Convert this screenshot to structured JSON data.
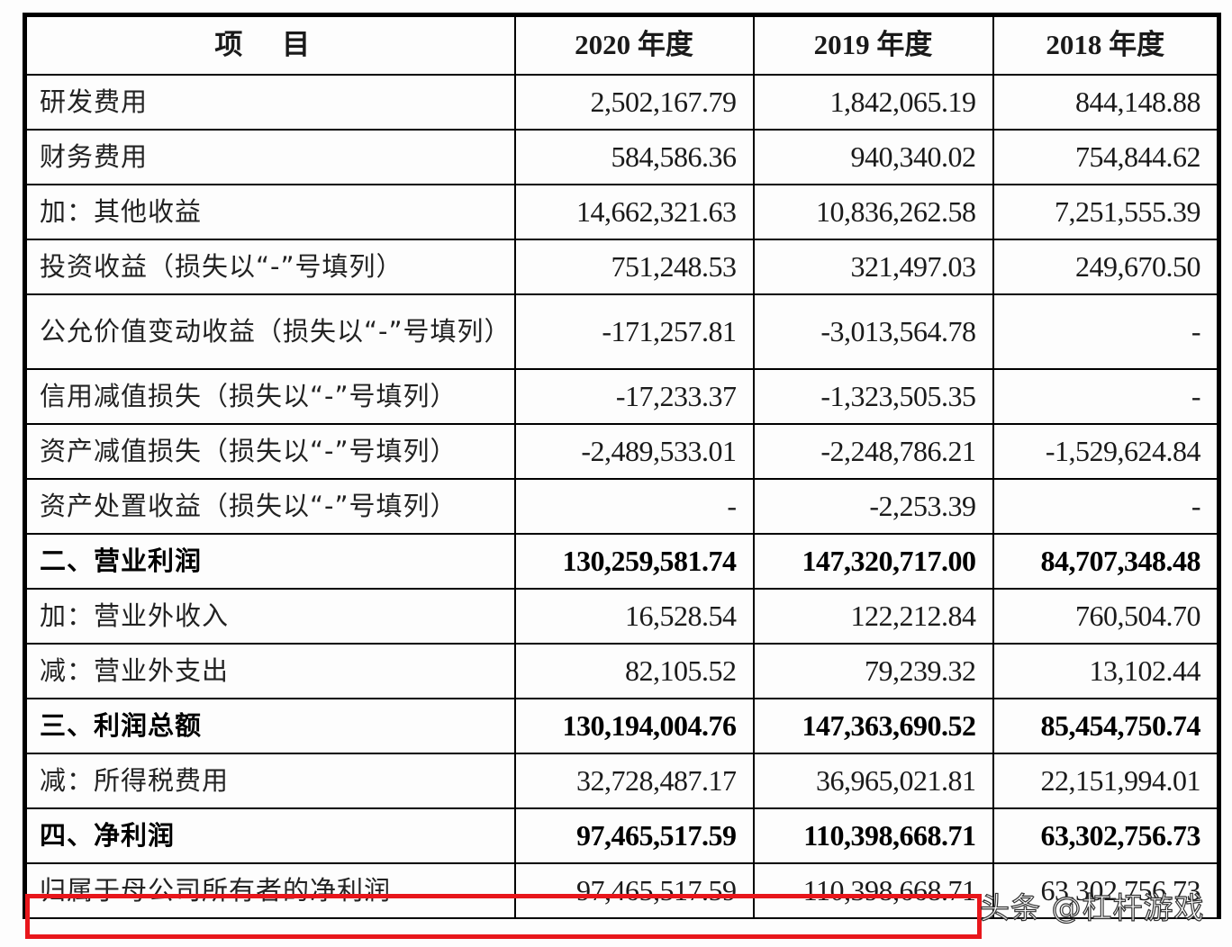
{
  "table": {
    "headers": [
      "项 目",
      "2020 年度",
      "2019 年度",
      "2018 年度"
    ],
    "rows": [
      {
        "label": "研发费用",
        "v2020": "2,502,167.79",
        "v2019": "1,842,065.19",
        "v2018": "844,148.88",
        "bold": false
      },
      {
        "label": "财务费用",
        "v2020": "584,586.36",
        "v2019": "940,340.02",
        "v2018": "754,844.62",
        "bold": false
      },
      {
        "label": "加：其他收益",
        "v2020": "14,662,321.63",
        "v2019": "10,836,262.58",
        "v2018": "7,251,555.39",
        "bold": false
      },
      {
        "label": "投资收益（损失以“-”号填列）",
        "v2020": "751,248.53",
        "v2019": "321,497.03",
        "v2018": "249,670.50",
        "bold": false
      },
      {
        "label": "公允价值变动收益（损失以“-”号填列）",
        "v2020": "-171,257.81",
        "v2019": "-3,013,564.78",
        "v2018": "-",
        "bold": false
      },
      {
        "label": "信用减值损失（损失以“-”号填列）",
        "v2020": "-17,233.37",
        "v2019": "-1,323,505.35",
        "v2018": "-",
        "bold": false
      },
      {
        "label": "资产减值损失（损失以“-”号填列）",
        "v2020": "-2,489,533.01",
        "v2019": "-2,248,786.21",
        "v2018": "-1,529,624.84",
        "bold": false
      },
      {
        "label": "资产处置收益（损失以“-”号填列）",
        "v2020": "-",
        "v2019": "-2,253.39",
        "v2018": "-",
        "bold": false
      },
      {
        "label": "二、营业利润",
        "v2020": "130,259,581.74",
        "v2019": "147,320,717.00",
        "v2018": "84,707,348.48",
        "bold": true
      },
      {
        "label": "加：营业外收入",
        "v2020": "16,528.54",
        "v2019": "122,212.84",
        "v2018": "760,504.70",
        "bold": false
      },
      {
        "label": "减：营业外支出",
        "v2020": "82,105.52",
        "v2019": "79,239.32",
        "v2018": "13,102.44",
        "bold": false
      },
      {
        "label": "三、利润总额",
        "v2020": "130,194,004.76",
        "v2019": "147,363,690.52",
        "v2018": "85,454,750.74",
        "bold": true
      },
      {
        "label": "减：所得税费用",
        "v2020": "32,728,487.17",
        "v2019": "36,965,021.81",
        "v2018": "22,151,994.01",
        "bold": false
      },
      {
        "label": "四、净利润",
        "v2020": "97,465,517.59",
        "v2019": "110,398,668.71",
        "v2018": "63,302,756.73",
        "bold": true
      },
      {
        "label": "归属于母公司所有者的净利润",
        "v2020": "97,465,517.59",
        "v2019": "110,398,668.71",
        "v2018": "63,302,756.73",
        "bold": false
      }
    ]
  },
  "highlight": {
    "target_row": "归属于母公司所有者的净利润",
    "color": "#e8161b"
  },
  "watermark": {
    "text": "头条 @杠杆游戏"
  }
}
